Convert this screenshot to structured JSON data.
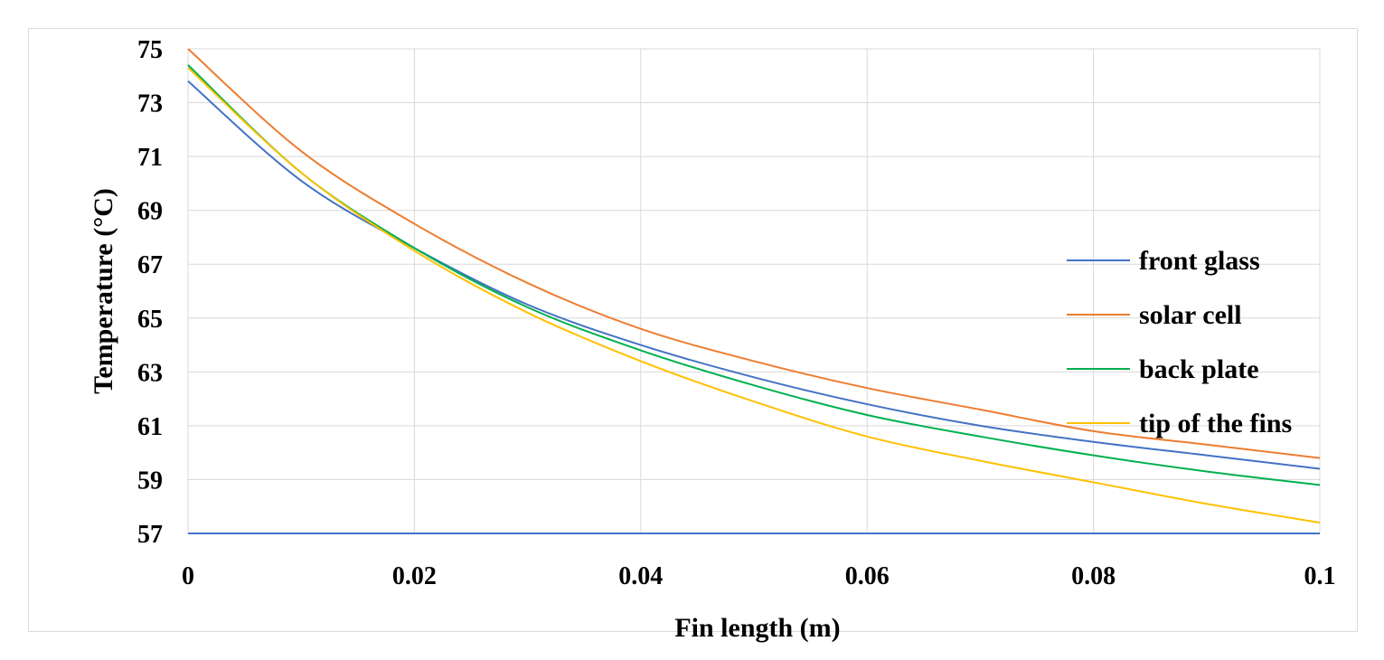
{
  "chart_data": {
    "type": "line",
    "title": "",
    "xlabel": "Fin length  (m)",
    "ylabel": "Temperature (°C)",
    "xlim": [
      0,
      0.1
    ],
    "ylim": [
      57,
      75
    ],
    "x_ticks": [
      "0",
      "0.02",
      "0.04",
      "0.06",
      "0.08",
      "0.1"
    ],
    "x_tick_values": [
      0,
      0.02,
      0.04,
      0.06,
      0.08,
      0.1
    ],
    "y_ticks": [
      "57",
      "59",
      "61",
      "63",
      "65",
      "67",
      "69",
      "71",
      "73",
      "75"
    ],
    "y_tick_values": [
      57,
      59,
      61,
      63,
      65,
      67,
      69,
      71,
      73,
      75
    ],
    "grid": true,
    "legend_position": "right",
    "x": [
      0,
      0.01,
      0.02,
      0.03,
      0.04,
      0.05,
      0.06,
      0.07,
      0.08,
      0.09,
      0.1
    ],
    "series": [
      {
        "name": "front glass",
        "color": "#4472c4",
        "values": [
          73.8,
          70.1,
          67.6,
          65.5,
          64.0,
          62.8,
          61.8,
          61.0,
          60.4,
          59.9,
          59.4
        ]
      },
      {
        "name": "solar cell",
        "color": "#ed7d31",
        "values": [
          75.0,
          71.2,
          68.5,
          66.3,
          64.6,
          63.4,
          62.4,
          61.6,
          60.8,
          60.3,
          59.8
        ]
      },
      {
        "name": "back plate",
        "color": "#00b050",
        "values": [
          74.4,
          70.4,
          67.6,
          65.4,
          63.8,
          62.5,
          61.4,
          60.6,
          59.9,
          59.3,
          58.8
        ]
      },
      {
        "name": "tip of the fins",
        "color": "#ffc000",
        "values": [
          74.3,
          70.4,
          67.5,
          65.2,
          63.4,
          61.9,
          60.6,
          59.7,
          58.9,
          58.1,
          57.4
        ]
      }
    ],
    "axis_line_color": "#4472c4",
    "grid_color": "#d9d9d9"
  }
}
